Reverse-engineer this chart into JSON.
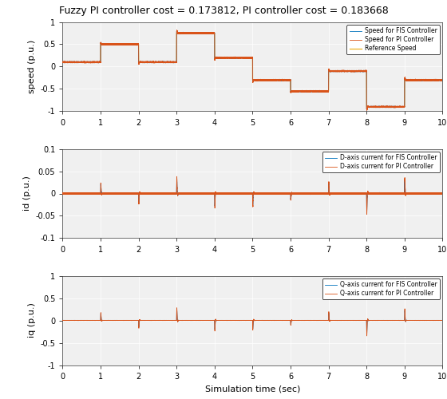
{
  "title": "Fuzzy PI controller cost = 0.173812, PI controller cost = 0.183668",
  "title_fontsize": 9,
  "xlabel": "Simulation time (sec)",
  "ylabel_speed": "speed (p.u.)",
  "ylabel_id": "id (p.u.)",
  "ylabel_iq": "iq (p.u.)",
  "xlim": [
    0,
    10
  ],
  "speed_ylim": [
    -1,
    1
  ],
  "id_ylim": [
    -0.1,
    0.1
  ],
  "iq_ylim": [
    -1,
    1
  ],
  "speed_yticks": [
    -1,
    -0.5,
    0,
    0.5,
    1
  ],
  "id_yticks": [
    -0.1,
    -0.05,
    0,
    0.05,
    0.1
  ],
  "iq_yticks": [
    -1,
    -0.5,
    0,
    0.5,
    1
  ],
  "xticks": [
    0,
    1,
    2,
    3,
    4,
    5,
    6,
    7,
    8,
    9,
    10
  ],
  "color_fis": "#0072BD",
  "color_pi": "#D95319",
  "color_ref": "#EDB120",
  "legend_speed": [
    "Speed for FIS Controller",
    "Speed for PI Controller",
    "Reference Speed"
  ],
  "legend_id": [
    "D-axis current for FIS Controller",
    "D-axis current for PI Controller"
  ],
  "legend_iq": [
    "Q-axis current for FIS Controller",
    "Q-axis current for PI Controller"
  ],
  "ref_speed_levels": [
    0.1,
    0.5,
    0.1,
    0.75,
    0.2,
    -0.3,
    -0.55,
    -0.1,
    -0.9,
    -0.3
  ],
  "bg_color": "#f0f0f0"
}
